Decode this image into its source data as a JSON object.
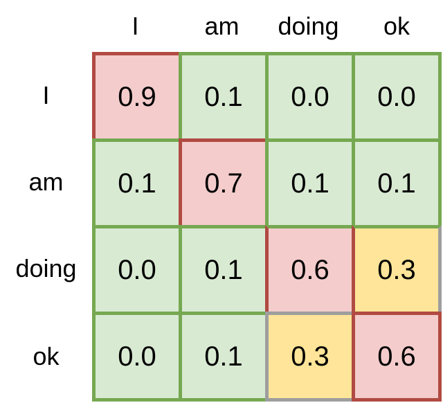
{
  "figure": {
    "background": "#ffffff",
    "description": "Word-to-word probability matrix over the sentence 'I am doing ok'"
  },
  "chart_data": {
    "type": "heatmap",
    "title": "",
    "xlabel": "",
    "ylabel": "",
    "col_labels": [
      "I",
      "am",
      "doing",
      "ok"
    ],
    "row_labels": [
      "I",
      "am",
      "doing",
      "ok"
    ],
    "values": [
      [
        0.9,
        0.1,
        0.0,
        0.0
      ],
      [
        0.1,
        0.7,
        0.1,
        0.1
      ],
      [
        0.0,
        0.1,
        0.6,
        0.3
      ],
      [
        0.0,
        0.1,
        0.3,
        0.6
      ]
    ],
    "display_values": [
      [
        "0.9",
        "0.1",
        "0.0",
        "0.0"
      ],
      [
        "0.1",
        "0.7",
        "0.1",
        "0.1"
      ],
      [
        "0.0",
        "0.1",
        "0.6",
        "0.3"
      ],
      [
        "0.0",
        "0.1",
        "0.3",
        "0.6"
      ]
    ],
    "cell_colors": [
      [
        "red",
        "green",
        "green",
        "green"
      ],
      [
        "green",
        "red",
        "green",
        "green"
      ],
      [
        "green",
        "green",
        "red",
        "yellow"
      ],
      [
        "green",
        "green",
        "yellow",
        "red"
      ]
    ],
    "palette": {
      "red_fill": "#f4cccc",
      "green_fill": "#d9ead3",
      "yellow_fill": "#ffe599",
      "red_border": "#b14a42",
      "green_border": "#76a851",
      "gray_border": "#9e9e9e",
      "text": "#000000"
    },
    "legend_position": "none",
    "grid": true
  }
}
